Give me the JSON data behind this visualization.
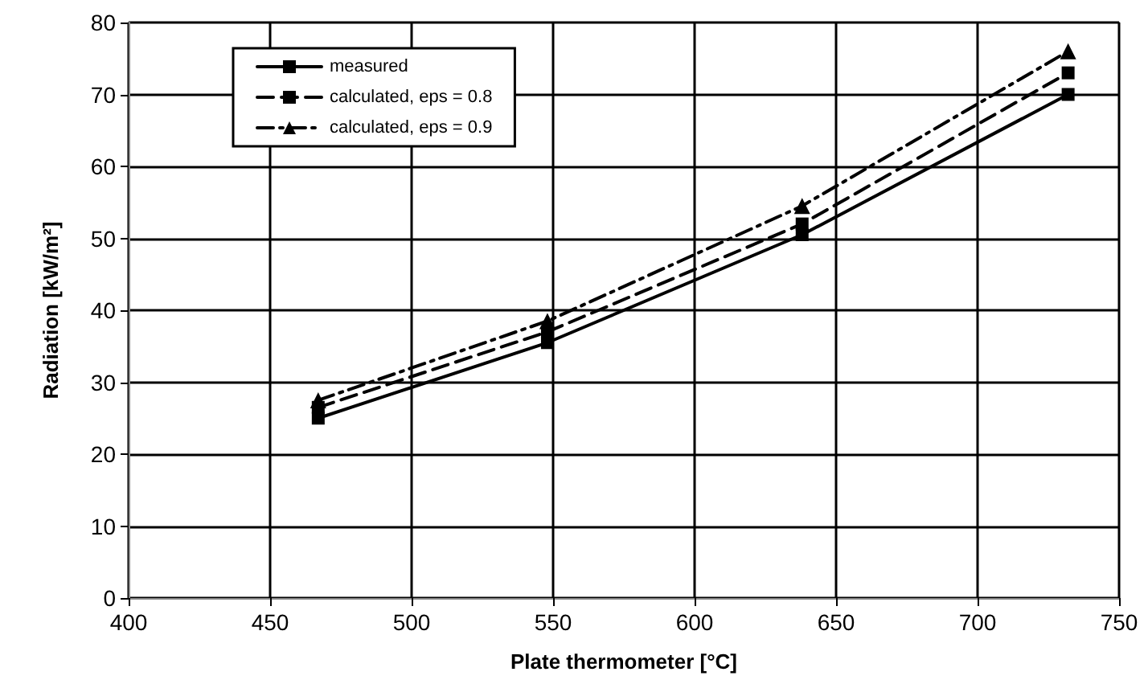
{
  "chart_data": {
    "type": "line",
    "xlabel": "Plate thermometer [°C]",
    "ylabel": "Radiation [kW/m²]",
    "x": [
      467,
      548,
      638,
      732
    ],
    "series": [
      {
        "name": "measured",
        "color": "#000000",
        "values": [
          25,
          35.5,
          50.5,
          70
        ],
        "marker": "square",
        "line_style": "solid"
      },
      {
        "name": "calculated, eps = 0.8",
        "color": "#000000",
        "values": [
          26.5,
          37,
          52,
          73
        ],
        "marker": "square",
        "line_style": "dashed"
      },
      {
        "name": "calculated, eps = 0.9",
        "color": "#000000",
        "values": [
          27.5,
          38.5,
          54.5,
          76
        ],
        "marker": "triangle",
        "line_style": "dashdot"
      }
    ],
    "xlim": [
      400,
      750
    ],
    "xticks": [
      400,
      450,
      500,
      550,
      600,
      650,
      700,
      750
    ],
    "ylim": [
      0,
      80
    ],
    "yticks": [
      0,
      10,
      20,
      30,
      40,
      50,
      60,
      70,
      80
    ],
    "grid": true,
    "legend": "top left"
  }
}
